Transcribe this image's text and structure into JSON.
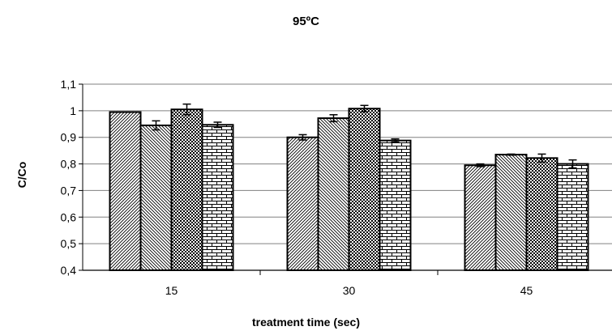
{
  "chart_data": {
    "type": "bar",
    "title": "95ºC",
    "xlabel": "treatment time (sec)",
    "ylabel": "C/Co",
    "ylim": [
      0.4,
      1.1
    ],
    "yticks": [
      "0,4",
      "0,5",
      "0,6",
      "0,7",
      "0,8",
      "0,9",
      "1",
      "1,1"
    ],
    "grid": true,
    "categories": [
      "15",
      "30",
      "45"
    ],
    "series": [
      {
        "pattern": "diagonal-dense",
        "values": [
          0.995,
          0.9,
          0.795
        ],
        "errors": [
          0,
          0.01,
          0.005
        ]
      },
      {
        "pattern": "diagonal-reverse",
        "values": [
          0.945,
          0.972,
          0.835
        ],
        "errors": [
          0.017,
          0.013,
          0.002
        ]
      },
      {
        "pattern": "checker",
        "values": [
          1.005,
          1.008,
          0.822
        ],
        "errors": [
          0.02,
          0.012,
          0.015
        ]
      },
      {
        "pattern": "brick",
        "values": [
          0.947,
          0.888,
          0.8
        ],
        "errors": [
          0.01,
          0.006,
          0.015
        ]
      }
    ]
  }
}
